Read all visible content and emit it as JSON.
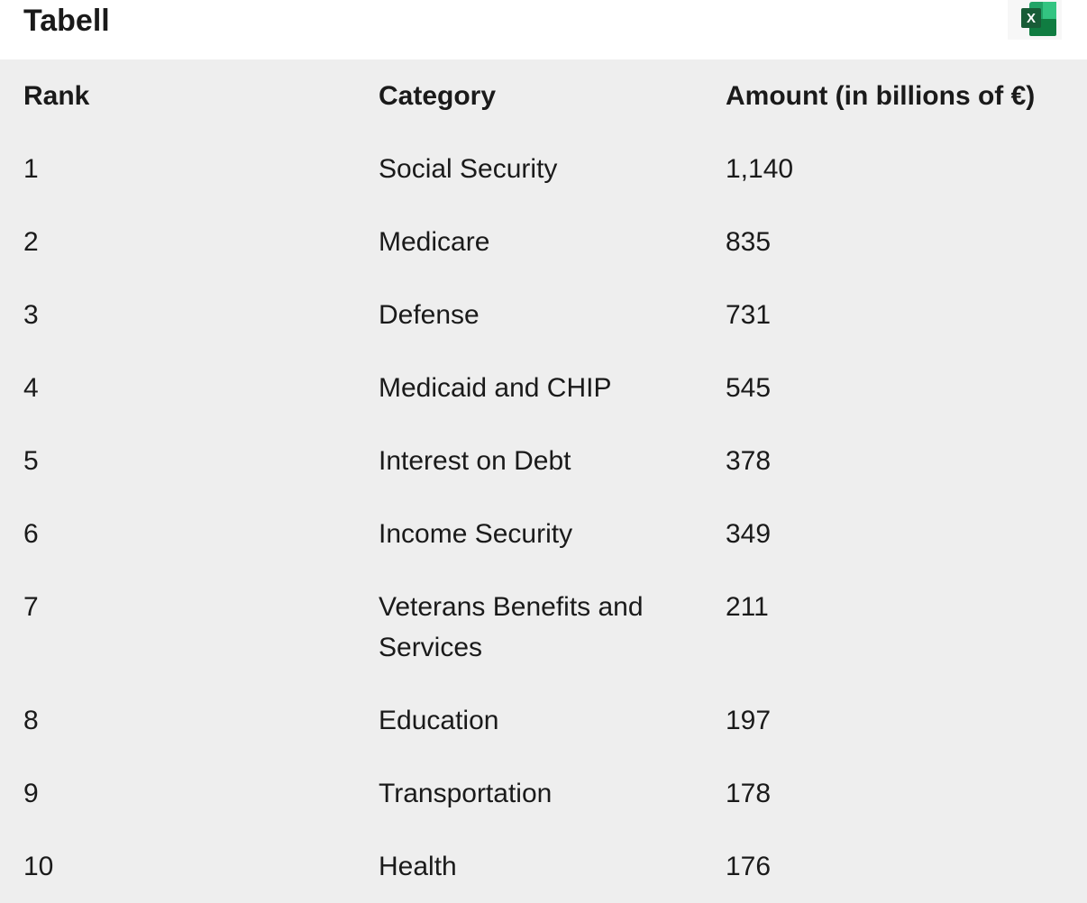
{
  "header": {
    "title": "Tabell"
  },
  "table": {
    "columns": [
      "Rank",
      "Category",
      "Amount (in billions of €)"
    ],
    "rows": [
      [
        "1",
        "Social Security",
        "1,140"
      ],
      [
        "2",
        "Medicare",
        "835"
      ],
      [
        "3",
        "Defense",
        "731"
      ],
      [
        "4",
        "Medicaid and CHIP",
        "545"
      ],
      [
        "5",
        "Interest on Debt",
        "378"
      ],
      [
        "6",
        "Income Security",
        "349"
      ],
      [
        "7",
        "Veterans Benefits and Services",
        "211"
      ],
      [
        "8",
        "Education",
        "197"
      ],
      [
        "9",
        "Transportation",
        "178"
      ],
      [
        "10",
        "Health",
        "176"
      ]
    ]
  }
}
